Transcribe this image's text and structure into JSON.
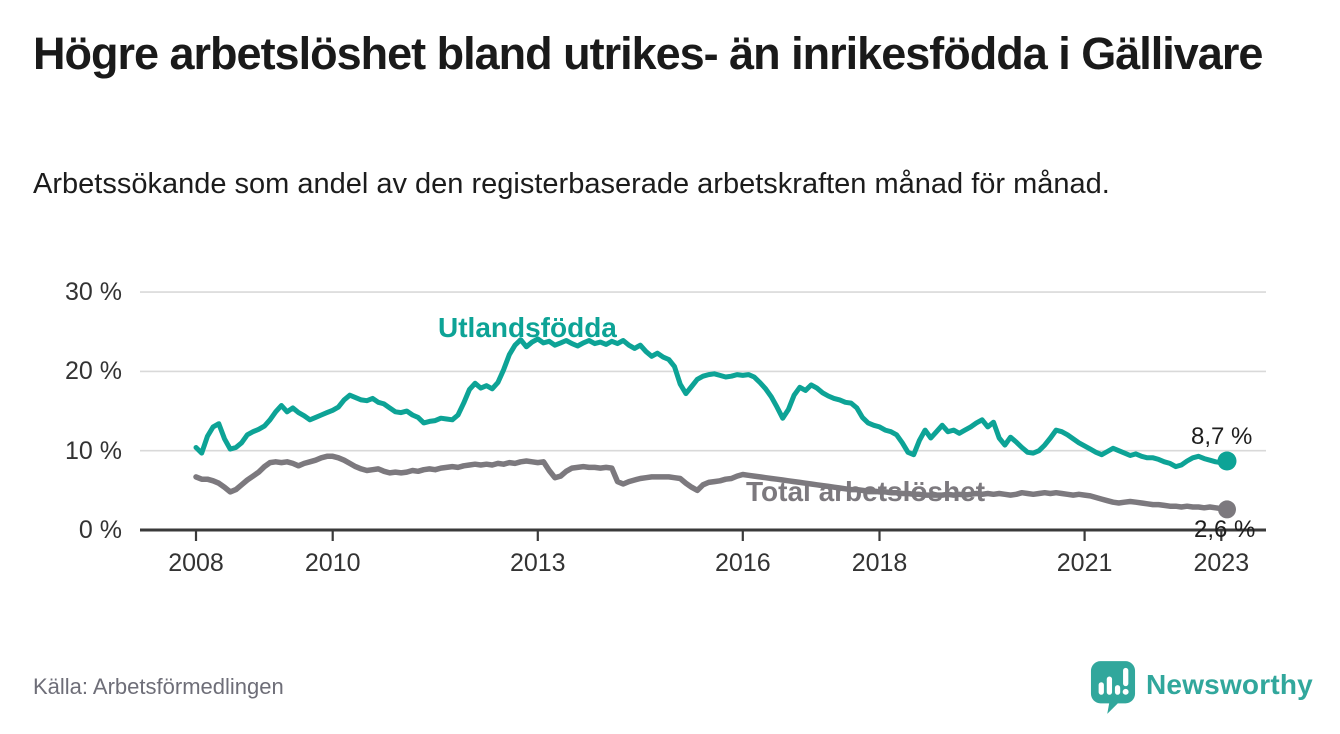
{
  "header": {
    "title": "Högre arbetslöshet bland utrikes- än inrikesfödda i Gällivare",
    "subtitle": "Arbetssökande som andel av den registerbaserade arbetskraften månad för månad."
  },
  "chart_data": {
    "type": "line",
    "title": "Högre arbetslöshet bland utrikes- än inrikesfödda i Gällivare",
    "subtitle": "Arbetssökande som andel av den registerbaserade arbetskraften månad för månad.",
    "unit": "%",
    "frequency": "monthly",
    "x_start": "2008-01",
    "x_end": "2023-02",
    "x_ticks": [
      2008,
      2010,
      2013,
      2016,
      2018,
      2021,
      2023
    ],
    "y_ticks": [
      0,
      10,
      20,
      30
    ],
    "y_tick_labels": [
      "0 %",
      "10 %",
      "20 %",
      "30 %"
    ],
    "ylim": [
      0,
      32
    ],
    "grid": true,
    "legend_position": "inline-labels",
    "series": [
      {
        "name": "Utlandsfödda",
        "color": "#0da396",
        "last_value": 8.7,
        "last_value_label": "8,7 %",
        "values": [
          10.4,
          9.7,
          11.8,
          13.0,
          13.4,
          11.5,
          10.2,
          10.4,
          11.0,
          12.0,
          12.4,
          12.7,
          13.1,
          13.9,
          14.9,
          15.7,
          14.9,
          15.4,
          14.8,
          14.4,
          13.9,
          14.2,
          14.5,
          14.8,
          15.1,
          15.5,
          16.4,
          17.0,
          16.7,
          16.4,
          16.3,
          16.6,
          16.1,
          15.9,
          15.4,
          14.9,
          14.8,
          15.0,
          14.5,
          14.2,
          13.5,
          13.7,
          13.8,
          14.1,
          14.0,
          13.9,
          14.5,
          16.0,
          17.7,
          18.5,
          17.9,
          18.2,
          17.8,
          18.6,
          20.2,
          22.1,
          23.3,
          24.0,
          23.1,
          23.7,
          24.1,
          23.6,
          23.8,
          23.3,
          23.6,
          23.9,
          23.5,
          23.2,
          23.6,
          23.9,
          23.5,
          23.7,
          23.4,
          23.8,
          23.5,
          23.9,
          23.3,
          22.9,
          23.3,
          22.5,
          21.9,
          22.3,
          21.8,
          21.5,
          20.6,
          18.4,
          17.2,
          18.1,
          19.0,
          19.4,
          19.6,
          19.7,
          19.5,
          19.3,
          19.4,
          19.6,
          19.5,
          19.6,
          19.3,
          18.6,
          17.8,
          16.8,
          15.5,
          14.1,
          15.2,
          17.0,
          18.0,
          17.6,
          18.3,
          17.9,
          17.3,
          16.9,
          16.6,
          16.4,
          16.1,
          16.0,
          15.4,
          14.2,
          13.5,
          13.2,
          13.0,
          12.6,
          12.4,
          12.0,
          11.0,
          9.8,
          9.5,
          11.3,
          12.6,
          11.6,
          12.4,
          13.2,
          12.4,
          12.6,
          12.2,
          12.6,
          13.0,
          13.5,
          13.9,
          13.0,
          13.6,
          11.6,
          10.7,
          11.7,
          11.1,
          10.4,
          9.8,
          9.7,
          10.0,
          10.7,
          11.6,
          12.6,
          12.4,
          12.0,
          11.5,
          11.0,
          10.6,
          10.2,
          9.8,
          9.5,
          9.9,
          10.3,
          10.0,
          9.7,
          9.4,
          9.6,
          9.3,
          9.1,
          9.1,
          8.9,
          8.6,
          8.4,
          8.0,
          8.2,
          8.7,
          9.1,
          9.3,
          9.0,
          8.8,
          8.6,
          8.5,
          8.7
        ]
      },
      {
        "name": "Total arbetslöshet",
        "color": "#7c797e",
        "last_value": 2.6,
        "last_value_label": "2,6 %",
        "values": [
          6.7,
          6.4,
          6.4,
          6.2,
          5.9,
          5.4,
          4.8,
          5.1,
          5.7,
          6.3,
          6.8,
          7.3,
          8.0,
          8.5,
          8.6,
          8.5,
          8.6,
          8.4,
          8.1,
          8.4,
          8.6,
          8.8,
          9.1,
          9.3,
          9.3,
          9.1,
          8.8,
          8.4,
          8.0,
          7.7,
          7.5,
          7.6,
          7.7,
          7.4,
          7.2,
          7.3,
          7.2,
          7.3,
          7.5,
          7.4,
          7.6,
          7.7,
          7.6,
          7.8,
          7.9,
          8.0,
          7.9,
          8.1,
          8.2,
          8.3,
          8.2,
          8.3,
          8.2,
          8.4,
          8.3,
          8.5,
          8.4,
          8.6,
          8.7,
          8.6,
          8.5,
          8.6,
          7.5,
          6.6,
          6.8,
          7.4,
          7.8,
          7.9,
          8.0,
          7.9,
          7.9,
          7.8,
          7.9,
          7.8,
          6.1,
          5.8,
          6.1,
          6.3,
          6.5,
          6.6,
          6.7,
          6.7,
          6.7,
          6.7,
          6.6,
          6.5,
          5.9,
          5.4,
          5.0,
          5.7,
          6.0,
          6.1,
          6.2,
          6.4,
          6.5,
          6.8,
          7.0,
          6.9,
          6.8,
          6.7,
          6.6,
          6.5,
          6.4,
          6.3,
          6.2,
          6.1,
          6.0,
          5.9,
          5.8,
          5.7,
          5.6,
          5.5,
          5.4,
          5.3,
          5.2,
          5.1,
          5.1,
          5.0,
          4.9,
          4.9,
          4.8,
          4.8,
          4.7,
          4.7,
          4.6,
          4.6,
          4.5,
          4.5,
          4.4,
          4.4,
          4.4,
          4.4,
          4.5,
          4.4,
          4.5,
          4.4,
          4.5,
          4.6,
          4.5,
          4.6,
          4.5,
          4.6,
          4.5,
          4.4,
          4.5,
          4.7,
          4.6,
          4.5,
          4.6,
          4.7,
          4.6,
          4.7,
          4.6,
          4.5,
          4.4,
          4.5,
          4.4,
          4.3,
          4.1,
          3.9,
          3.7,
          3.5,
          3.4,
          3.5,
          3.6,
          3.5,
          3.4,
          3.3,
          3.2,
          3.2,
          3.1,
          3.0,
          3.0,
          2.9,
          3.0,
          2.9,
          2.9,
          2.8,
          2.9,
          2.8,
          2.7,
          2.6
        ]
      }
    ]
  },
  "footer": {
    "source": "Källa: Arbetsförmedlingen",
    "brand": "Newsworthy",
    "brand_color": "#31a79c"
  },
  "style": {
    "grid_color": "#d9d9d9",
    "axis_color": "#3a3a3a",
    "text_color": "#1a1a1a",
    "tick_label_color": "#333333"
  }
}
